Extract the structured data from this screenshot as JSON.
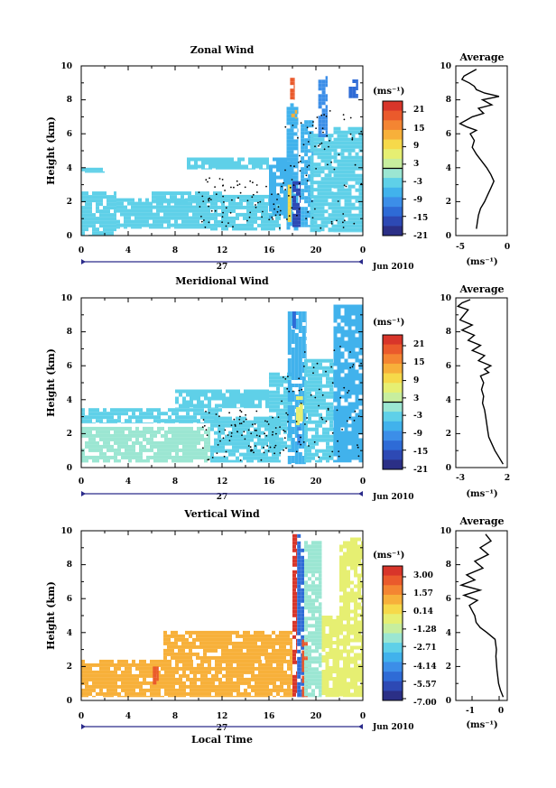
{
  "chart_data": [
    {
      "type": "heatmap",
      "title": "Zonal Wind",
      "ylabel": "Height (km)",
      "xlabel": "",
      "xlim": [
        0,
        24
      ],
      "ylim": [
        0,
        10
      ],
      "xticks": [
        "0",
        "4",
        "8",
        "12",
        "16",
        "20",
        "0"
      ],
      "yticks": [
        "0",
        "2",
        "4",
        "6",
        "8",
        "10"
      ],
      "date_day": "27",
      "date_month": "Jun 2010",
      "colorbar": {
        "unit": "(ms⁻¹)",
        "ticks": [
          "21",
          "15",
          "9",
          "3",
          "-3",
          "-9",
          "-15",
          "-21"
        ],
        "range": [
          -24,
          24
        ]
      },
      "regions": [
        {
          "x0": 0,
          "x1": 3,
          "y0": 0,
          "y1": 2.6,
          "value": -6
        },
        {
          "x0": 0,
          "x1": 2,
          "y0": 3.7,
          "y1": 4.0,
          "value": -5
        },
        {
          "x0": 3,
          "x1": 11,
          "y0": 0.4,
          "y1": 2.2,
          "value": -5
        },
        {
          "x0": 6,
          "x1": 12,
          "y0": 1.9,
          "y1": 2.6,
          "value": -4
        },
        {
          "x0": 9,
          "x1": 16,
          "y0": 3.9,
          "y1": 4.6,
          "value": -5
        },
        {
          "x0": 11,
          "x1": 17,
          "y0": 0.3,
          "y1": 2.4,
          "value": -6
        },
        {
          "x0": 16,
          "x1": 18,
          "y0": 1.0,
          "y1": 4.6,
          "value": -7
        },
        {
          "x0": 17.5,
          "x1": 18.5,
          "y0": 0.3,
          "y1": 7.8,
          "value": -8
        },
        {
          "x0": 18.0,
          "x1": 18.7,
          "y0": 0.5,
          "y1": 3.2,
          "value": -20
        },
        {
          "x0": 18.7,
          "x1": 19.8,
          "y0": 0.5,
          "y1": 6.8,
          "value": -9
        },
        {
          "x0": 19.5,
          "x1": 21.5,
          "y0": 0.2,
          "y1": 6.0,
          "value": -6
        },
        {
          "x0": 21.5,
          "x1": 24,
          "y0": 0.2,
          "y1": 6.4,
          "value": -4
        },
        {
          "x0": 20.2,
          "x1": 21.0,
          "y0": 5.8,
          "y1": 9.4,
          "value": -12
        },
        {
          "x0": 22.8,
          "x1": 23.6,
          "y0": 8.1,
          "y1": 9.2,
          "value": -14
        },
        {
          "x0": 17.8,
          "x1": 18.2,
          "y0": 8.0,
          "y1": 9.3,
          "value": 18
        },
        {
          "x0": 17.9,
          "x1": 18.4,
          "y0": 6.9,
          "y1": 7.4,
          "value": 12
        },
        {
          "x0": 17.6,
          "x1": 17.9,
          "y0": 0.8,
          "y1": 3.0,
          "value": 8
        }
      ]
    },
    {
      "type": "line",
      "title": "Average",
      "xlabel": "(ms⁻¹)",
      "ylabel": "",
      "xlim": [
        -5,
        0
      ],
      "ylim": [
        0,
        10
      ],
      "xticks": [
        "-5",
        "0"
      ],
      "yticks": [
        "0",
        "2",
        "4",
        "6",
        "8",
        "10"
      ],
      "x": [
        -3.0,
        -2.9,
        -2.8,
        -2.6,
        -2.2,
        -1.9,
        -1.6,
        -1.3,
        -1.6,
        -2.0,
        -2.5,
        -3.0,
        -3.4,
        -3.2,
        -3.6,
        -3.0,
        -3.9,
        -4.6,
        -4.0,
        -3.4,
        -2.3,
        -2.8,
        -1.5,
        -2.4,
        -0.8,
        -2.2,
        -3.0,
        -3.2,
        -3.7,
        -4.4,
        -4.2,
        -3.0
      ],
      "y": [
        0.4,
        0.8,
        1.2,
        1.6,
        2.0,
        2.4,
        2.8,
        3.2,
        3.6,
        4.0,
        4.4,
        4.8,
        5.2,
        5.6,
        6.0,
        6.2,
        6.4,
        6.6,
        6.8,
        7.0,
        7.2,
        7.5,
        7.7,
        8.0,
        8.2,
        8.4,
        8.6,
        8.8,
        9.0,
        9.2,
        9.4,
        9.8
      ]
    },
    {
      "type": "heatmap",
      "title": "Meridional Wind",
      "ylabel": "Height (km)",
      "xlabel": "",
      "xlim": [
        0,
        24
      ],
      "ylim": [
        0,
        10
      ],
      "xticks": [
        "0",
        "4",
        "8",
        "12",
        "16",
        "20",
        "0"
      ],
      "yticks": [
        "0",
        "2",
        "4",
        "6",
        "8",
        "10"
      ],
      "date_day": "27",
      "date_month": "Jun 2010",
      "colorbar": {
        "unit": "(ms⁻¹)",
        "ticks": [
          "21",
          "15",
          "9",
          "3",
          "-3",
          "-9",
          "-15",
          "-21"
        ],
        "range": [
          -24,
          24
        ]
      },
      "regions": [
        {
          "x0": 0,
          "x1": 11,
          "y0": 0.3,
          "y1": 2.4,
          "value": -1
        },
        {
          "x0": 0,
          "x1": 12,
          "y0": 2.6,
          "y1": 3.5,
          "value": -5
        },
        {
          "x0": 8,
          "x1": 16,
          "y0": 3.5,
          "y1": 4.6,
          "value": -6
        },
        {
          "x0": 11,
          "x1": 17,
          "y0": 0.3,
          "y1": 3.0,
          "value": -4
        },
        {
          "x0": 16,
          "x1": 18,
          "y0": 1.0,
          "y1": 5.6,
          "value": -6
        },
        {
          "x0": 17.6,
          "x1": 19.2,
          "y0": 0.2,
          "y1": 9.2,
          "value": -7
        },
        {
          "x0": 18.3,
          "x1": 18.9,
          "y0": 2.5,
          "y1": 4.2,
          "value": 6
        },
        {
          "x0": 19,
          "x1": 21.5,
          "y0": 0.3,
          "y1": 6.4,
          "value": -5
        },
        {
          "x0": 21.5,
          "x1": 24,
          "y0": 0.3,
          "y1": 9.6,
          "value": -8
        },
        {
          "x0": 18.0,
          "x1": 18.3,
          "y0": 8.2,
          "y1": 9.2,
          "value": -15
        },
        {
          "x0": 18.4,
          "x1": 18.7,
          "y0": 1.2,
          "y1": 2.4,
          "value": -12
        }
      ]
    },
    {
      "type": "line",
      "title": "Average",
      "xlabel": "(ms⁻¹)",
      "ylabel": "",
      "xlim": [
        -3,
        2
      ],
      "ylim": [
        0,
        10
      ],
      "xticks": [
        "-3",
        "2"
      ],
      "yticks": [
        "0",
        "2",
        "4",
        "6",
        "8",
        "10"
      ],
      "x": [
        1.6,
        1.2,
        0.8,
        0.5,
        0.2,
        0.1,
        0.0,
        -0.1,
        -0.2,
        -0.4,
        -0.3,
        -0.5,
        -0.3,
        -0.6,
        0.2,
        -0.2,
        0.4,
        -0.8,
        -0.2,
        -1.4,
        -0.6,
        -1.8,
        -1.2,
        -2.4,
        -1.4,
        -2.6,
        -2.2,
        -1.8,
        -2.8,
        -2.4,
        -1.6
      ],
      "y": [
        0.2,
        0.6,
        1.0,
        1.4,
        1.8,
        2.2,
        2.6,
        3.0,
        3.4,
        3.8,
        4.2,
        4.6,
        5.0,
        5.4,
        5.6,
        5.8,
        6.0,
        6.3,
        6.6,
        6.9,
        7.2,
        7.5,
        7.8,
        8.1,
        8.4,
        8.7,
        9.0,
        9.3,
        9.5,
        9.7,
        9.9
      ]
    },
    {
      "type": "heatmap",
      "title": "Vertical Wind",
      "ylabel": "Height (km)",
      "xlabel": "Local Time",
      "xlim": [
        0,
        24
      ],
      "ylim": [
        0,
        10
      ],
      "xticks": [
        "0",
        "4",
        "8",
        "12",
        "16",
        "20",
        "0"
      ],
      "yticks": [
        "0",
        "2",
        "4",
        "6",
        "8",
        "10"
      ],
      "date_day": "27",
      "date_month": "Jun 2010",
      "colorbar": {
        "unit": "(ms⁻¹)",
        "ticks": [
          "3.00",
          "1.57",
          "0.14",
          "-1.28",
          "-2.71",
          "-4.14",
          "-5.57",
          "-7.00"
        ],
        "range": [
          -7.714,
          3.714
        ]
      },
      "regions": [
        {
          "x0": 0,
          "x1": 18,
          "y0": 0.2,
          "y1": 2.4,
          "value": 0.6
        },
        {
          "x0": 7,
          "x1": 18,
          "y0": 2.4,
          "y1": 4.1,
          "value": 0.6
        },
        {
          "x0": 6.1,
          "x1": 6.6,
          "y0": 0.8,
          "y1": 2.0,
          "value": 2.5
        },
        {
          "x0": 18.0,
          "x1": 18.4,
          "y0": 0.2,
          "y1": 9.8,
          "value": 3.0
        },
        {
          "x0": 18.4,
          "x1": 19.0,
          "y0": 0.2,
          "y1": 9.8,
          "value": -5.5
        },
        {
          "x0": 18.8,
          "x1": 19.3,
          "y0": 0.2,
          "y1": 3.8,
          "value": 2.8
        },
        {
          "x0": 19.0,
          "x1": 20.5,
          "y0": 0.2,
          "y1": 9.4,
          "value": -2.4
        },
        {
          "x0": 20.5,
          "x1": 22,
          "y0": 0.2,
          "y1": 5.0,
          "value": -1.0
        },
        {
          "x0": 22,
          "x1": 24,
          "y0": 0.2,
          "y1": 9.6,
          "value": -0.4
        }
      ]
    },
    {
      "type": "line",
      "title": "Average",
      "xlabel": "(ms⁻¹)",
      "ylabel": "",
      "xlim": [
        -1.6,
        0.3
      ],
      "ylim": [
        0,
        10
      ],
      "xticks": [
        "-1",
        "0"
      ],
      "yticks": [
        "0",
        "2",
        "4",
        "6",
        "8",
        "10"
      ],
      "x": [
        0.15,
        0.05,
        -0.02,
        -0.05,
        -0.08,
        -0.1,
        -0.12,
        -0.1,
        -0.15,
        -0.45,
        -0.7,
        -0.85,
        -0.9,
        -1.0,
        -1.1,
        -0.8,
        -1.3,
        -0.7,
        -1.4,
        -0.9,
        -1.2,
        -0.6,
        -0.9,
        -0.4,
        -0.7,
        -0.3,
        -0.5
      ],
      "y": [
        0.2,
        0.6,
        1.0,
        1.4,
        1.8,
        2.2,
        2.6,
        3.0,
        3.6,
        4.0,
        4.3,
        4.6,
        5.0,
        5.3,
        5.6,
        5.9,
        6.2,
        6.5,
        6.8,
        7.1,
        7.4,
        7.8,
        8.2,
        8.6,
        9.0,
        9.4,
        9.8
      ]
    }
  ]
}
